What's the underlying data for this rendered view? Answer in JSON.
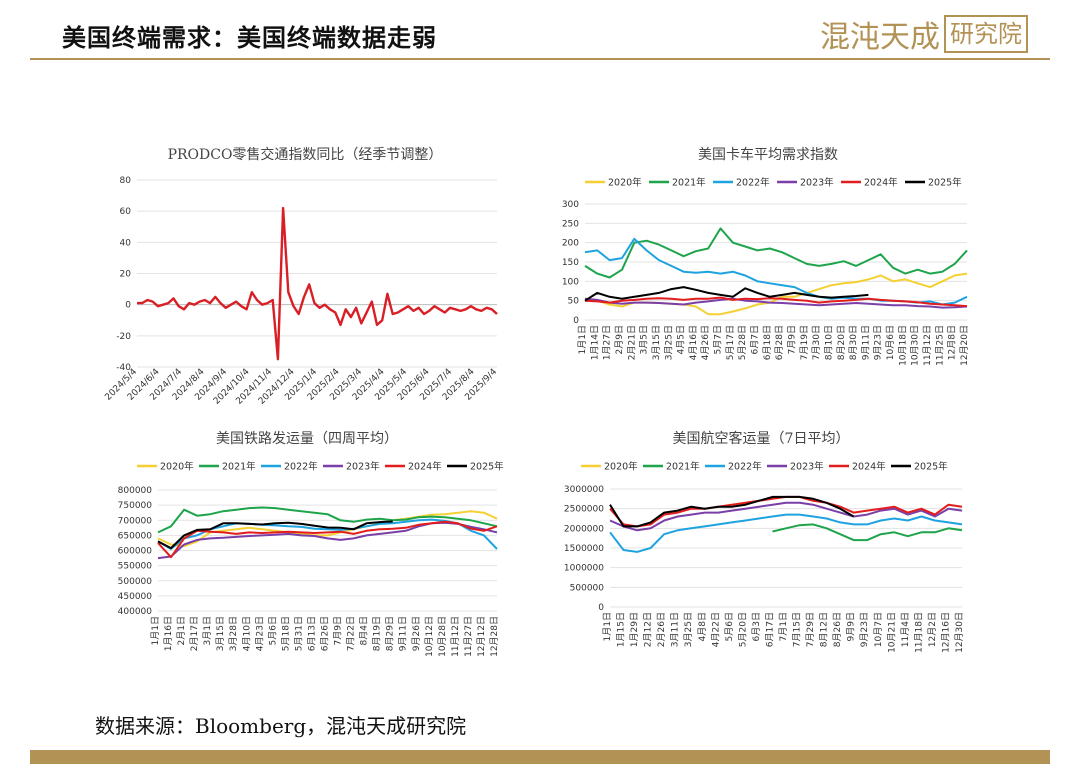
{
  "header": {
    "title": "美国终端需求：美国终端数据走弱",
    "logo_text": "混沌天成",
    "logo_seal": "研究院"
  },
  "footer": {
    "source": "数据来源：Bloomberg，混沌天成研究院"
  },
  "colors": {
    "accent": "#b39255",
    "y2020": "#f5d033",
    "y2021": "#1ea44b",
    "y2022": "#1fa3e0",
    "y2023": "#7a3fa8",
    "y2024": "#e21d1d",
    "y2025": "#000000",
    "single": "#d91f26"
  },
  "chart_data": [
    {
      "id": "prodco",
      "type": "line",
      "title": "PRODCO零售交通指数同比（经季节调整）",
      "ylim": [
        -40,
        80
      ],
      "yticks": [
        -40,
        -20,
        0,
        20,
        40,
        60,
        80
      ],
      "x_labels": [
        "2024/5/4",
        "2024/6/4",
        "2024/7/4",
        "2024/8/4",
        "2024/9/4",
        "2024/10/4",
        "2024/11/4",
        "2024/12/4",
        "2025/1/4",
        "2025/2/4",
        "2025/3/4",
        "2025/4/4",
        "2025/5/4",
        "2025/6/4",
        "2025/7/4",
        "2025/8/4",
        "2025/9/4"
      ],
      "series": [
        {
          "color": "#d91f26",
          "values": [
            1,
            1,
            3,
            2,
            -1,
            0,
            1,
            4,
            -1,
            -3,
            1,
            0,
            2,
            3,
            1,
            5,
            1,
            -2,
            0,
            2,
            -1,
            -3,
            8,
            3,
            0,
            1,
            3,
            -35,
            62,
            8,
            -1,
            -6,
            5,
            13,
            1,
            -2,
            0,
            -3,
            -5,
            -13,
            -3,
            -8,
            -2,
            -12,
            -5,
            2,
            -13,
            -10,
            7,
            -6,
            -5,
            -3,
            -1,
            -4,
            -2,
            -6,
            -4,
            -1,
            -3,
            -5,
            -2,
            -3,
            -4,
            -3,
            -1,
            -3,
            -4,
            -2,
            -3,
            -6
          ]
        }
      ]
    },
    {
      "id": "truck",
      "type": "line",
      "title": "美国卡车平均需求指数",
      "ylim": [
        0,
        300
      ],
      "yticks": [
        0,
        50,
        100,
        150,
        200,
        250,
        300
      ],
      "x_labels": [
        "1月1日",
        "1月14日",
        "1月27日",
        "2月9日",
        "2月21日",
        "3月5日",
        "3月15日",
        "3月25日",
        "4月5日",
        "4月16日",
        "4月26日",
        "5月7日",
        "5月17日",
        "5月28日",
        "6月7日",
        "6月18日",
        "6月28日",
        "7月9日",
        "7月19日",
        "7月30日",
        "8月10日",
        "8月20日",
        "8月30日",
        "9月11日",
        "9月23日",
        "10月6日",
        "10月18日",
        "10月30日",
        "11月12日",
        "11月25日",
        "12月8日",
        "12月20日"
      ],
      "legend": [
        "2020年",
        "2021年",
        "2022年",
        "2023年",
        "2024年",
        "2025年"
      ],
      "series": [
        {
          "name": "2020年",
          "color": "#f5d033",
          "values": [
            55,
            50,
            40,
            35,
            45,
            45,
            44,
            42,
            40,
            35,
            15,
            15,
            22,
            30,
            40,
            45,
            60,
            60,
            70,
            80,
            90,
            95,
            98,
            105,
            115,
            100,
            105,
            95,
            85,
            100,
            115,
            120
          ]
        },
        {
          "name": "2021年",
          "color": "#1ea44b",
          "values": [
            140,
            120,
            110,
            130,
            200,
            205,
            195,
            180,
            165,
            178,
            185,
            237,
            200,
            190,
            180,
            185,
            175,
            160,
            145,
            140,
            145,
            152,
            140,
            155,
            170,
            135,
            120,
            130,
            120,
            125,
            145,
            180
          ]
        },
        {
          "name": "2022年",
          "color": "#1fa3e0",
          "values": [
            175,
            180,
            155,
            160,
            210,
            180,
            155,
            140,
            125,
            122,
            125,
            120,
            125,
            115,
            100,
            95,
            90,
            85,
            70,
            60,
            55,
            58,
            55,
            55,
            50,
            50,
            48,
            45,
            48,
            40,
            45,
            60
          ]
        },
        {
          "name": "2023年",
          "color": "#7a3fa8",
          "values": [
            55,
            52,
            45,
            42,
            45,
            45,
            44,
            42,
            40,
            45,
            48,
            52,
            55,
            50,
            48,
            45,
            44,
            42,
            40,
            38,
            40,
            42,
            44,
            42,
            40,
            38,
            38,
            36,
            35,
            32,
            33,
            35
          ]
        },
        {
          "name": "2024年",
          "color": "#e21d1d",
          "values": [
            50,
            48,
            45,
            50,
            52,
            55,
            56,
            55,
            52,
            55,
            55,
            58,
            52,
            55,
            54,
            56,
            55,
            52,
            50,
            45,
            48,
            50,
            52,
            55,
            52,
            50,
            48,
            46,
            42,
            40,
            38,
            36
          ]
        },
        {
          "name": "2025年",
          "color": "#000000",
          "values": [
            50,
            70,
            60,
            55,
            60,
            65,
            70,
            80,
            85,
            78,
            70,
            65,
            60,
            82,
            70,
            60,
            65,
            70,
            65,
            60,
            58,
            60,
            62,
            65,
            null,
            null,
            null,
            null,
            null,
            null,
            null,
            null
          ]
        }
      ]
    },
    {
      "id": "rail",
      "type": "line",
      "title": "美国铁路发运量（四周平均）",
      "ylim": [
        400000,
        800000
      ],
      "yticks": [
        400000,
        450000,
        500000,
        550000,
        600000,
        650000,
        700000,
        750000,
        800000
      ],
      "x_labels": [
        "1月1日",
        "1月16日",
        "2月1日",
        "2月17日",
        "3月1日",
        "3月15日",
        "3月28日",
        "4月10日",
        "4月23日",
        "5月6日",
        "5月18日",
        "5月31日",
        "6月13日",
        "6月26日",
        "7月9日",
        "7月22日",
        "8月4日",
        "8月19日",
        "8月29日",
        "9月11日",
        "9月26日",
        "10月12日",
        "10月28日",
        "11月12日",
        "11月27日",
        "12月12日",
        "12月28日"
      ],
      "legend": [
        "2020年",
        "2021年",
        "2022年",
        "2023年",
        "2024年",
        "2025年"
      ],
      "series": [
        {
          "name": "2020年",
          "color": "#f5d033",
          "values": [
            640,
            620,
            615,
            630,
            660,
            665,
            670,
            675,
            670,
            665,
            660,
            655,
            650,
            650,
            660,
            670,
            680,
            690,
            700,
            705,
            712,
            718,
            720,
            725,
            730,
            725,
            705
          ]
        },
        {
          "name": "2021年",
          "color": "#1ea44b",
          "values": [
            660,
            680,
            735,
            715,
            720,
            730,
            735,
            740,
            742,
            740,
            735,
            730,
            725,
            720,
            700,
            695,
            702,
            705,
            700,
            702,
            710,
            712,
            710,
            705,
            700,
            690,
            680
          ]
        },
        {
          "name": "2022年",
          "color": "#1fa3e0",
          "values": [
            630,
            605,
            640,
            650,
            670,
            680,
            690,
            688,
            685,
            683,
            680,
            678,
            672,
            670,
            668,
            672,
            680,
            688,
            690,
            695,
            700,
            702,
            698,
            690,
            665,
            650,
            605
          ]
        },
        {
          "name": "2023年",
          "color": "#7a3fa8",
          "values": [
            575,
            580,
            620,
            635,
            640,
            642,
            645,
            648,
            650,
            652,
            655,
            650,
            648,
            640,
            635,
            640,
            650,
            655,
            660,
            665,
            680,
            690,
            692,
            688,
            678,
            670,
            660
          ]
        },
        {
          "name": "2024年",
          "color": "#e21d1d",
          "values": [
            625,
            578,
            640,
            665,
            662,
            660,
            655,
            660,
            658,
            660,
            662,
            660,
            658,
            660,
            662,
            655,
            665,
            670,
            672,
            675,
            685,
            690,
            695,
            690,
            672,
            665,
            680
          ]
        },
        {
          "name": "2025年",
          "color": "#000000",
          "values": [
            630,
            608,
            650,
            668,
            670,
            690,
            690,
            688,
            686,
            690,
            692,
            688,
            682,
            676,
            675,
            670,
            690,
            694,
            696,
            null,
            null,
            null,
            null,
            null,
            null,
            null,
            null
          ]
        }
      ]
    },
    {
      "id": "air",
      "type": "line",
      "title": "美国航空客运量（7日平均）",
      "ylim": [
        0,
        3000000
      ],
      "yticks": [
        0,
        500000,
        1000000,
        1500000,
        2000000,
        2500000,
        3000000
      ],
      "x_labels": [
        "1月1日",
        "1月15日",
        "1月29日",
        "2月12日",
        "2月26日",
        "3月11日",
        "3月25日",
        "4月8日",
        "4月22日",
        "5月6日",
        "5月20日",
        "6月3日",
        "6月17日",
        "7月1日",
        "7月15日",
        "7月29日",
        "8月12日",
        "8月26日",
        "9月9日",
        "9月23日",
        "10月7日",
        "10月21日",
        "11月4日",
        "11月18日",
        "12月2日",
        "12月16日",
        "12月30日"
      ],
      "legend": [
        "2020年",
        "2021年",
        "2022年",
        "2023年",
        "2024年",
        "2025年"
      ],
      "series": [
        {
          "name": "2020年",
          "color": "#f5d033",
          "values": [
            null,
            null,
            null,
            null,
            null,
            null,
            null,
            null,
            null,
            null,
            null,
            null,
            null,
            null,
            null,
            null,
            null,
            null,
            null,
            null,
            null,
            null,
            null,
            null,
            null,
            null,
            null
          ]
        },
        {
          "name": "2021年",
          "color": "#1ea44b",
          "values": [
            null,
            null,
            null,
            null,
            null,
            null,
            null,
            null,
            null,
            null,
            null,
            null,
            1920,
            2000,
            2080,
            2100,
            2000,
            1850,
            1700,
            1700,
            1850,
            1900,
            1800,
            1900,
            1900,
            2000,
            1950
          ]
        },
        {
          "name": "2022年",
          "color": "#1fa3e0",
          "values": [
            1900,
            1450,
            1400,
            1500,
            1850,
            1950,
            2000,
            2050,
            2100,
            2150,
            2200,
            2250,
            2300,
            2350,
            2350,
            2300,
            2250,
            2150,
            2100,
            2100,
            2200,
            2250,
            2200,
            2300,
            2200,
            2150,
            2100
          ]
        },
        {
          "name": "2023年",
          "color": "#7a3fa8",
          "values": [
            2200,
            2050,
            1950,
            2000,
            2200,
            2300,
            2350,
            2400,
            2400,
            2450,
            2500,
            2550,
            2600,
            2650,
            2650,
            2600,
            2500,
            2400,
            2300,
            2350,
            2450,
            2500,
            2350,
            2450,
            2300,
            2500,
            2450
          ]
        },
        {
          "name": "2024年",
          "color": "#e21d1d",
          "values": [
            2500,
            2100,
            2050,
            2100,
            2350,
            2400,
            2500,
            2500,
            2550,
            2600,
            2650,
            2700,
            2750,
            2800,
            2800,
            2700,
            2650,
            2550,
            2400,
            2450,
            2500,
            2550,
            2400,
            2500,
            2350,
            2600,
            2550
          ]
        },
        {
          "name": "2025年",
          "color": "#000000",
          "values": [
            2600,
            2050,
            2050,
            2150,
            2400,
            2450,
            2550,
            2500,
            2550,
            2550,
            2600,
            2700,
            2800,
            2800,
            2800,
            2750,
            2650,
            2500,
            2300,
            null,
            null,
            null,
            null,
            null,
            null,
            null,
            null
          ]
        }
      ]
    }
  ]
}
